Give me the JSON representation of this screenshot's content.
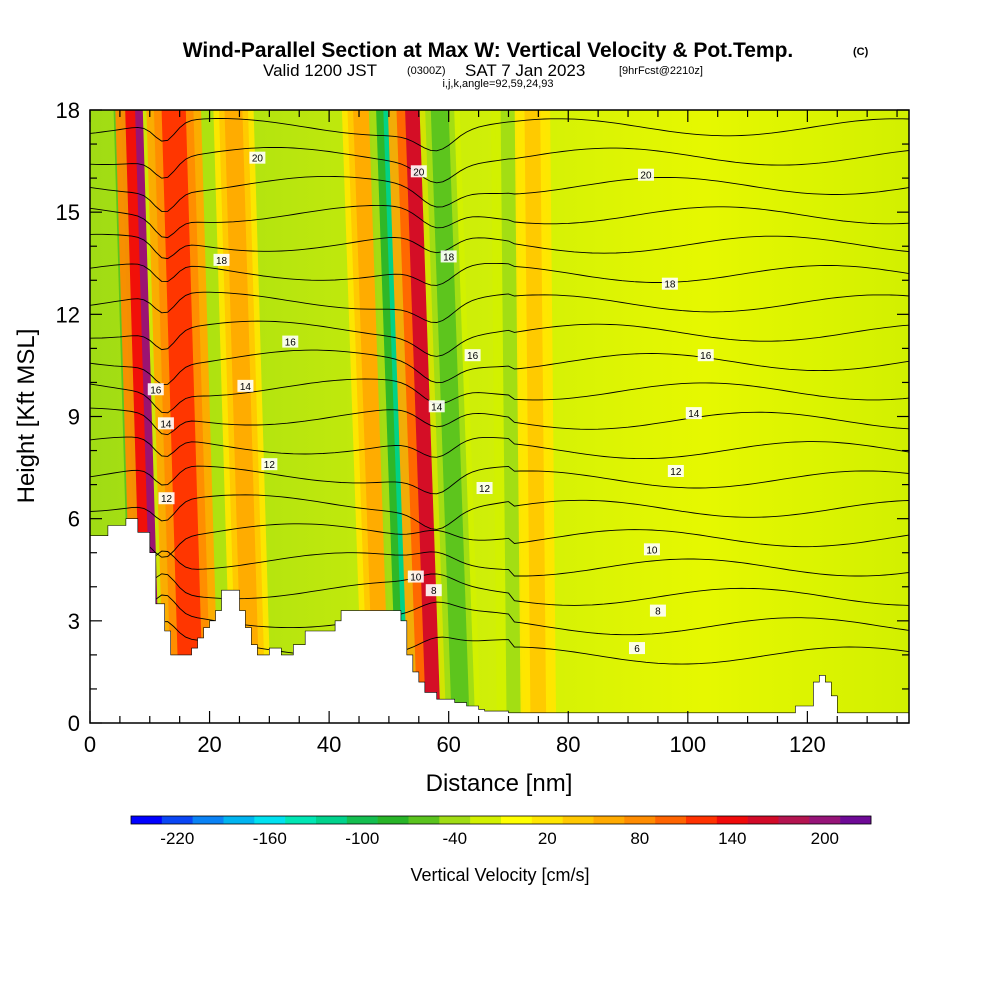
{
  "header": {
    "title_main": "Wind-Parallel Section at Max W: Vertical Velocity & Pot.Temp.",
    "title_mark": "(C)",
    "valid_label": "Valid 1200 JST",
    "valid_utc": "(0300Z)",
    "valid_date": "SAT 7 Jan 2023",
    "forecast_label": "[9hrFcst@2210z]",
    "indices_label": "i,j,k,angle=92,59,24,93"
  },
  "chart_data": {
    "type": "heatmap",
    "title": "Wind-Parallel Section at Max W: Vertical Velocity & Pot.Temp.",
    "xlabel": "Distance [nm]",
    "ylabel": "Height [Kft MSL]",
    "xlim": [
      0,
      137
    ],
    "ylim": [
      0,
      18
    ],
    "x_ticks": [
      0,
      20,
      40,
      60,
      80,
      100,
      120
    ],
    "y_ticks": [
      0,
      3,
      6,
      9,
      12,
      15,
      18
    ],
    "x_tick_labels": [
      "0",
      "20",
      "40",
      "60",
      "80",
      "100",
      "120"
    ],
    "y_tick_labels": [
      "0",
      "3",
      "6",
      "9",
      "12",
      "15",
      "18"
    ],
    "grid": false,
    "field": "Vertical Velocity [cm/s]",
    "colorbar": {
      "label": "Vertical Velocity [cm/s]",
      "tick_labels": [
        "-220",
        "-160",
        "-100",
        "-40",
        "20",
        "80",
        "140",
        "200"
      ],
      "tick_values": [
        -220,
        -160,
        -100,
        -40,
        20,
        80,
        140,
        200
      ],
      "colors": [
        "#0000ff",
        "#0a46f5",
        "#0a82f5",
        "#00b4f0",
        "#00e1f0",
        "#00e6b4",
        "#00d28c",
        "#14be50",
        "#28b428",
        "#5ac31e",
        "#a0dc14",
        "#d2f000",
        "#ffff00",
        "#ffe600",
        "#ffc800",
        "#ffaa00",
        "#ff8c00",
        "#ff6400",
        "#ff3200",
        "#f00a0a",
        "#d20a28",
        "#b41450",
        "#961478",
        "#6e0a96"
      ]
    },
    "vertical_velocity_bands": [
      {
        "x": 11.5,
        "w_cms": -120
      },
      {
        "x": 13.2,
        "w_cms": 190
      },
      {
        "x": 15.0,
        "w_cms": -50
      },
      {
        "x": 17.0,
        "w_cms": 120
      },
      {
        "x": 27.0,
        "w_cms": 60
      },
      {
        "x": 49.0,
        "w_cms": 60
      },
      {
        "x": 54.5,
        "w_cms": -110
      },
      {
        "x": 58.5,
        "w_cms": 150
      },
      {
        "x": 62.0,
        "w_cms": -60
      },
      {
        "x": 71.0,
        "w_cms": -40
      },
      {
        "x": 75.0,
        "w_cms": 40
      }
    ],
    "terrain": [
      [
        0,
        5.5
      ],
      [
        3,
        5.5
      ],
      [
        3,
        5.8
      ],
      [
        6,
        5.8
      ],
      [
        6,
        6.0
      ],
      [
        8,
        6.0
      ],
      [
        8,
        5.6
      ],
      [
        10,
        5.6
      ],
      [
        10,
        5.0
      ],
      [
        11,
        5.0
      ],
      [
        11,
        3.5
      ],
      [
        12.5,
        3.5
      ],
      [
        12.5,
        2.7
      ],
      [
        13.5,
        2.7
      ],
      [
        13.5,
        2.0
      ],
      [
        17,
        2.0
      ],
      [
        17,
        2.2
      ],
      [
        18,
        2.2
      ],
      [
        18,
        2.5
      ],
      [
        19,
        2.5
      ],
      [
        19,
        2.8
      ],
      [
        20,
        2.8
      ],
      [
        20,
        3.0
      ],
      [
        21,
        3.0
      ],
      [
        21,
        3.3
      ],
      [
        22,
        3.3
      ],
      [
        22,
        3.9
      ],
      [
        25,
        3.9
      ],
      [
        25,
        3.3
      ],
      [
        26,
        3.3
      ],
      [
        26,
        2.8
      ],
      [
        27,
        2.8
      ],
      [
        27,
        2.3
      ],
      [
        28,
        2.3
      ],
      [
        28,
        2.0
      ],
      [
        30,
        2.0
      ],
      [
        30,
        2.2
      ],
      [
        32,
        2.2
      ],
      [
        32,
        2.0
      ],
      [
        34,
        2.0
      ],
      [
        34,
        2.3
      ],
      [
        36,
        2.3
      ],
      [
        36,
        2.7
      ],
      [
        41,
        2.7
      ],
      [
        41,
        3.0
      ],
      [
        42,
        3.0
      ],
      [
        42,
        3.3
      ],
      [
        52,
        3.3
      ],
      [
        52,
        3.0
      ],
      [
        53,
        3.0
      ],
      [
        53,
        2.0
      ],
      [
        54,
        2.0
      ],
      [
        54,
        1.5
      ],
      [
        55,
        1.5
      ],
      [
        55,
        1.2
      ],
      [
        56,
        1.2
      ],
      [
        56,
        0.9
      ],
      [
        58,
        0.9
      ],
      [
        58,
        0.7
      ],
      [
        61,
        0.7
      ],
      [
        61,
        0.6
      ],
      [
        63,
        0.6
      ],
      [
        63,
        0.5
      ],
      [
        65,
        0.5
      ],
      [
        65,
        0.4
      ],
      [
        66,
        0.4
      ],
      [
        66,
        0.35
      ],
      [
        70,
        0.35
      ],
      [
        70,
        0.3
      ],
      [
        80,
        0.3
      ],
      [
        100,
        0.3
      ],
      [
        115,
        0.3
      ],
      [
        118,
        0.3
      ],
      [
        118,
        0.5
      ],
      [
        121,
        0.5
      ],
      [
        121,
        1.2
      ],
      [
        122,
        1.2
      ],
      [
        122,
        1.4
      ],
      [
        123,
        1.4
      ],
      [
        123,
        1.2
      ],
      [
        124,
        1.2
      ],
      [
        124,
        0.8
      ],
      [
        125,
        0.8
      ],
      [
        125,
        0.3
      ],
      [
        137,
        0.3
      ]
    ],
    "contour_labels": [
      {
        "text": "20",
        "x": 28.0,
        "y": 16.6
      },
      {
        "text": "20",
        "x": 55.0,
        "y": 16.2
      },
      {
        "text": "20",
        "x": 93.0,
        "y": 16.1
      },
      {
        "text": "18",
        "x": 22.0,
        "y": 13.6
      },
      {
        "text": "18",
        "x": 60.0,
        "y": 13.7
      },
      {
        "text": "18",
        "x": 97.0,
        "y": 12.9
      },
      {
        "text": "16",
        "x": 11.0,
        "y": 9.8
      },
      {
        "text": "16",
        "x": 33.5,
        "y": 11.2
      },
      {
        "text": "16",
        "x": 64.0,
        "y": 10.8
      },
      {
        "text": "16",
        "x": 103.0,
        "y": 10.8
      },
      {
        "text": "14",
        "x": 12.7,
        "y": 8.8
      },
      {
        "text": "14",
        "x": 26.0,
        "y": 9.9
      },
      {
        "text": "14",
        "x": 58.0,
        "y": 9.3
      },
      {
        "text": "14",
        "x": 101.0,
        "y": 9.1
      },
      {
        "text": "12",
        "x": 12.8,
        "y": 6.6
      },
      {
        "text": "12",
        "x": 30.0,
        "y": 7.6
      },
      {
        "text": "12",
        "x": 66.0,
        "y": 6.9
      },
      {
        "text": "12",
        "x": 98.0,
        "y": 7.4
      },
      {
        "text": "10",
        "x": 54.5,
        "y": 4.3
      },
      {
        "text": "10",
        "x": 94.0,
        "y": 5.1
      },
      {
        "text": "8",
        "x": 57.5,
        "y": 3.9
      },
      {
        "text": "8",
        "x": 95.0,
        "y": 3.3
      },
      {
        "text": "6",
        "x": 91.5,
        "y": 2.2
      }
    ]
  }
}
